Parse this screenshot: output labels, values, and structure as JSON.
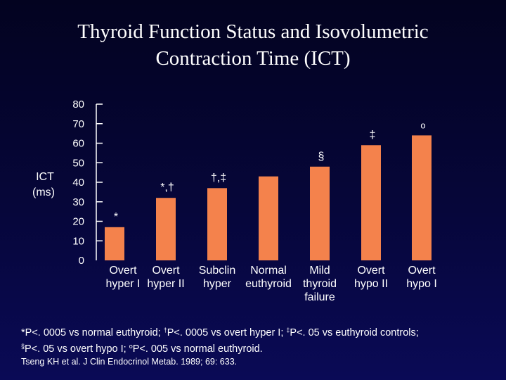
{
  "slide": {
    "title_line1": "Thyroid Function Status and Isovolumetric",
    "title_line2": "Contraction Time (ICT)",
    "footnote": {
      "line1_a": "*P<. 0005 vs normal euthyroid; ",
      "line1_b_sup": "†",
      "line1_b": "P<. 0005 vs overt hyper I; ",
      "line1_c_sup": "‡",
      "line1_c": "P<. 05 vs euthyroid controls;",
      "line2_a_sup": "§",
      "line2_a": "P<. 05 vs overt hypo I; ",
      "line2_b_sup": "o",
      "line2_b": "P<. 005 vs normal euthyroid."
    },
    "citation": "Tseng KH et al. J Clin Endocrinol Metab. 1989; 69: 633."
  },
  "chart_data": {
    "type": "bar",
    "ylabel_line1": "ICT",
    "ylabel_line2": "(ms)",
    "ylim": [
      0,
      80
    ],
    "yticks": [
      0,
      10,
      20,
      30,
      40,
      50,
      60,
      70,
      80
    ],
    "grid": false,
    "bar_color": "#f4824c",
    "categories": [
      [
        "Overt",
        "hyper I"
      ],
      [
        "Overt",
        "hyper II"
      ],
      [
        "Subclin",
        "hyper"
      ],
      [
        "Normal",
        "euthyroid"
      ],
      [
        "Mild",
        "thyroid",
        "failure"
      ],
      [
        "Overt",
        "hypo II"
      ],
      [
        "Overt",
        "hypo I"
      ]
    ],
    "values": [
      17,
      32,
      37,
      43,
      48,
      59,
      64
    ],
    "annotations": [
      "*",
      "*,†",
      "†,‡",
      "",
      "§",
      "‡",
      "o"
    ]
  }
}
